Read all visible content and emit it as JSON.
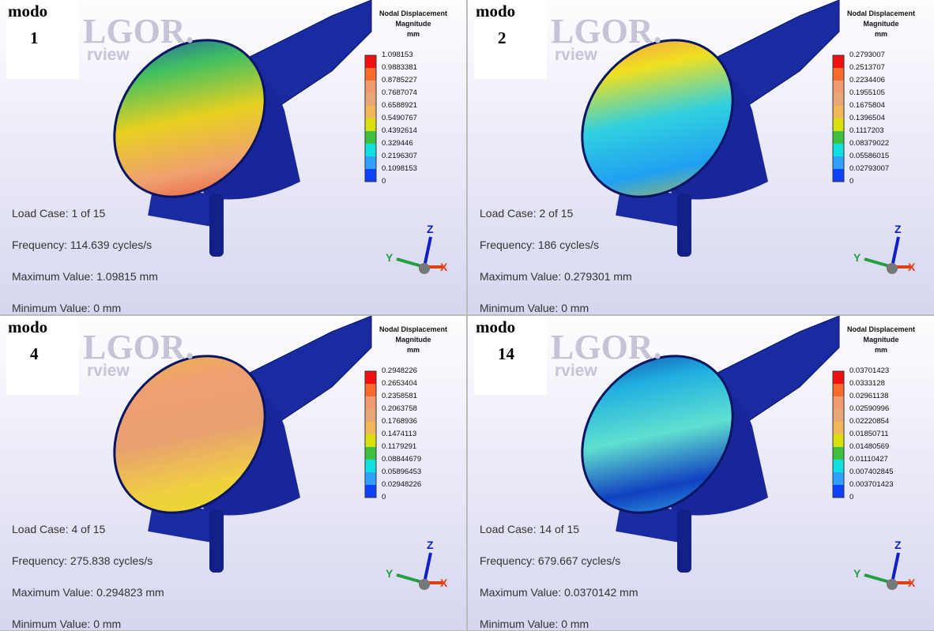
{
  "panels": [
    {
      "mode_label": "modo",
      "mode_number": "1",
      "watermark": [
        "LGOR.",
        "rview"
      ],
      "legend": {
        "title": [
          "Nodal Displacement",
          "Magnitude",
          "mm"
        ],
        "values": [
          "1.098153",
          "0.9883381",
          "0.8785227",
          "0.7687074",
          "0.6588921",
          "0.5490767",
          "0.4392614",
          "0.329446",
          "0.2196307",
          "0.1098153",
          "0"
        ]
      },
      "info": [
        "Load Case:  1 of 15",
        "Frequency: 114.639 cycles/s",
        "Maximum Value: 1.09815 mm",
        "Minimum Value: 0 mm"
      ],
      "axes": [
        "Z",
        "Y",
        "X"
      ]
    },
    {
      "mode_label": "modo",
      "mode_number": "2",
      "watermark": [
        "LGOR.",
        "rview"
      ],
      "legend": {
        "title": [
          "Nodal Displacement",
          "Magnitude",
          "mm"
        ],
        "values": [
          "0.2793007",
          "0.2513707",
          "0.2234406",
          "0.1955105",
          "0.1675804",
          "0.1396504",
          "0.1117203",
          "0.08379022",
          "0.05586015",
          "0.02793007",
          "0"
        ]
      },
      "info": [
        "Load Case:  2 of 15",
        "Frequency: 186 cycles/s",
        "Maximum Value: 0.279301 mm",
        "Minimum Value: 0 mm"
      ],
      "axes": [
        "Z",
        "Y",
        "X"
      ]
    },
    {
      "mode_label": "modo",
      "mode_number": "4",
      "watermark": [
        "LGOR.",
        "rview"
      ],
      "legend": {
        "title": [
          "Nodal Displacement",
          "Magnitude",
          "mm"
        ],
        "values": [
          "0.2948226",
          "0.2653404",
          "0.2358581",
          "0.2063758",
          "0.1768936",
          "0.1474113",
          "0.1179291",
          "0.08844679",
          "0.05896453",
          "0.02948226",
          "0"
        ]
      },
      "info": [
        "Load Case:  4 of 15",
        "Frequency: 275.838 cycles/s",
        "Maximum Value: 0.294823 mm",
        "Minimum Value: 0 mm"
      ],
      "axes": [
        "Z",
        "Y",
        "X"
      ]
    },
    {
      "mode_label": "modo",
      "mode_number": "14",
      "watermark": [
        "LGOR.",
        "rview"
      ],
      "legend": {
        "title": [
          "Nodal Displacement",
          "Magnitude",
          "mm"
        ],
        "values": [
          "0.03701423",
          "0.0333128",
          "0.02961138",
          "0.02590996",
          "0.02220854",
          "0.01850711",
          "0.01480569",
          "0.01110427",
          "0.007402845",
          "0.003701423",
          "0"
        ]
      },
      "info": [
        "Load Case:  14 of 15",
        "Frequency: 679.667 cycles/s",
        "Maximum Value: 0.0370142 mm",
        "Minimum Value: 0 mm"
      ],
      "axes": [
        "Z",
        "Y",
        "X"
      ]
    }
  ]
}
